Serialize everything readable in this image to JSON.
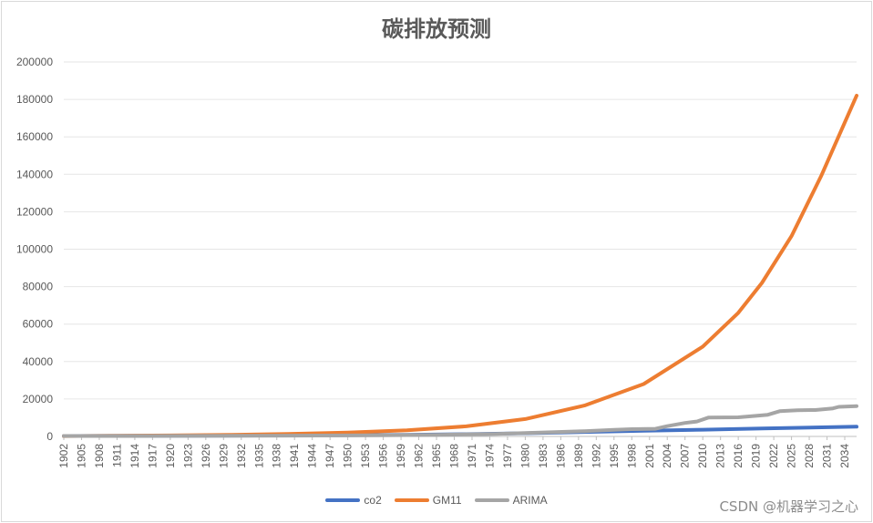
{
  "chart_data": {
    "type": "line",
    "title": "碳排放预测",
    "xlabel": "",
    "ylabel": "",
    "ylim": [
      0,
      200000
    ],
    "yticks": [
      0,
      20000,
      40000,
      60000,
      80000,
      100000,
      120000,
      140000,
      160000,
      180000,
      200000
    ],
    "x_start": 1902,
    "x_end": 2036,
    "x_tick_labels": [
      "1902",
      "1905",
      "1908",
      "1911",
      "1914",
      "1917",
      "1920",
      "1923",
      "1926",
      "1929",
      "1932",
      "1935",
      "1938",
      "1941",
      "1944",
      "1947",
      "1950",
      "1953",
      "1956",
      "1959",
      "1962",
      "1965",
      "1968",
      "1971",
      "1974",
      "1977",
      "1980",
      "1983",
      "1986",
      "1989",
      "1992",
      "1995",
      "1998",
      "2001",
      "2004",
      "2007",
      "2010",
      "2013",
      "2016",
      "2019",
      "2022",
      "2025",
      "2028",
      "2031",
      "2034"
    ],
    "grid": true,
    "legend_position": "bottom",
    "series": [
      {
        "name": "co2",
        "color": "#4472c4",
        "points": [
          [
            1902,
            250
          ],
          [
            1930,
            450
          ],
          [
            1950,
            700
          ],
          [
            1960,
            900
          ],
          [
            1970,
            1200
          ],
          [
            1980,
            1700
          ],
          [
            1990,
            2400
          ],
          [
            2000,
            3000
          ],
          [
            2010,
            3600
          ],
          [
            2020,
            4300
          ],
          [
            2036,
            5200
          ]
        ]
      },
      {
        "name": "GM11",
        "color": "#ed7d31",
        "points": [
          [
            1902,
            200
          ],
          [
            1910,
            320
          ],
          [
            1920,
            520
          ],
          [
            1930,
            850
          ],
          [
            1940,
            1350
          ],
          [
            1950,
            2100
          ],
          [
            1960,
            3300
          ],
          [
            1970,
            5400
          ],
          [
            1980,
            9300
          ],
          [
            1990,
            16500
          ],
          [
            2000,
            28000
          ],
          [
            2010,
            48000
          ],
          [
            2016,
            66000
          ],
          [
            2020,
            82000
          ],
          [
            2025,
            107000
          ],
          [
            2030,
            139000
          ],
          [
            2036,
            182000
          ]
        ]
      },
      {
        "name": "ARIMA",
        "color": "#a5a5a5",
        "points": [
          [
            1902,
            250
          ],
          [
            1920,
            300
          ],
          [
            1940,
            450
          ],
          [
            1955,
            600
          ],
          [
            1965,
            900
          ],
          [
            1975,
            1300
          ],
          [
            1980,
            1800
          ],
          [
            1985,
            2300
          ],
          [
            1990,
            2800
          ],
          [
            1995,
            3500
          ],
          [
            1998,
            3900
          ],
          [
            2002,
            4100
          ],
          [
            2004,
            5500
          ],
          [
            2007,
            7200
          ],
          [
            2009,
            8000
          ],
          [
            2011,
            10100
          ],
          [
            2016,
            10200
          ],
          [
            2019,
            11000
          ],
          [
            2021,
            11600
          ],
          [
            2023,
            13500
          ],
          [
            2026,
            14000
          ],
          [
            2029,
            14100
          ],
          [
            2032,
            15000
          ],
          [
            2033,
            15800
          ],
          [
            2036,
            16200
          ]
        ]
      }
    ]
  },
  "watermark": "CSDN @机器学习之心"
}
